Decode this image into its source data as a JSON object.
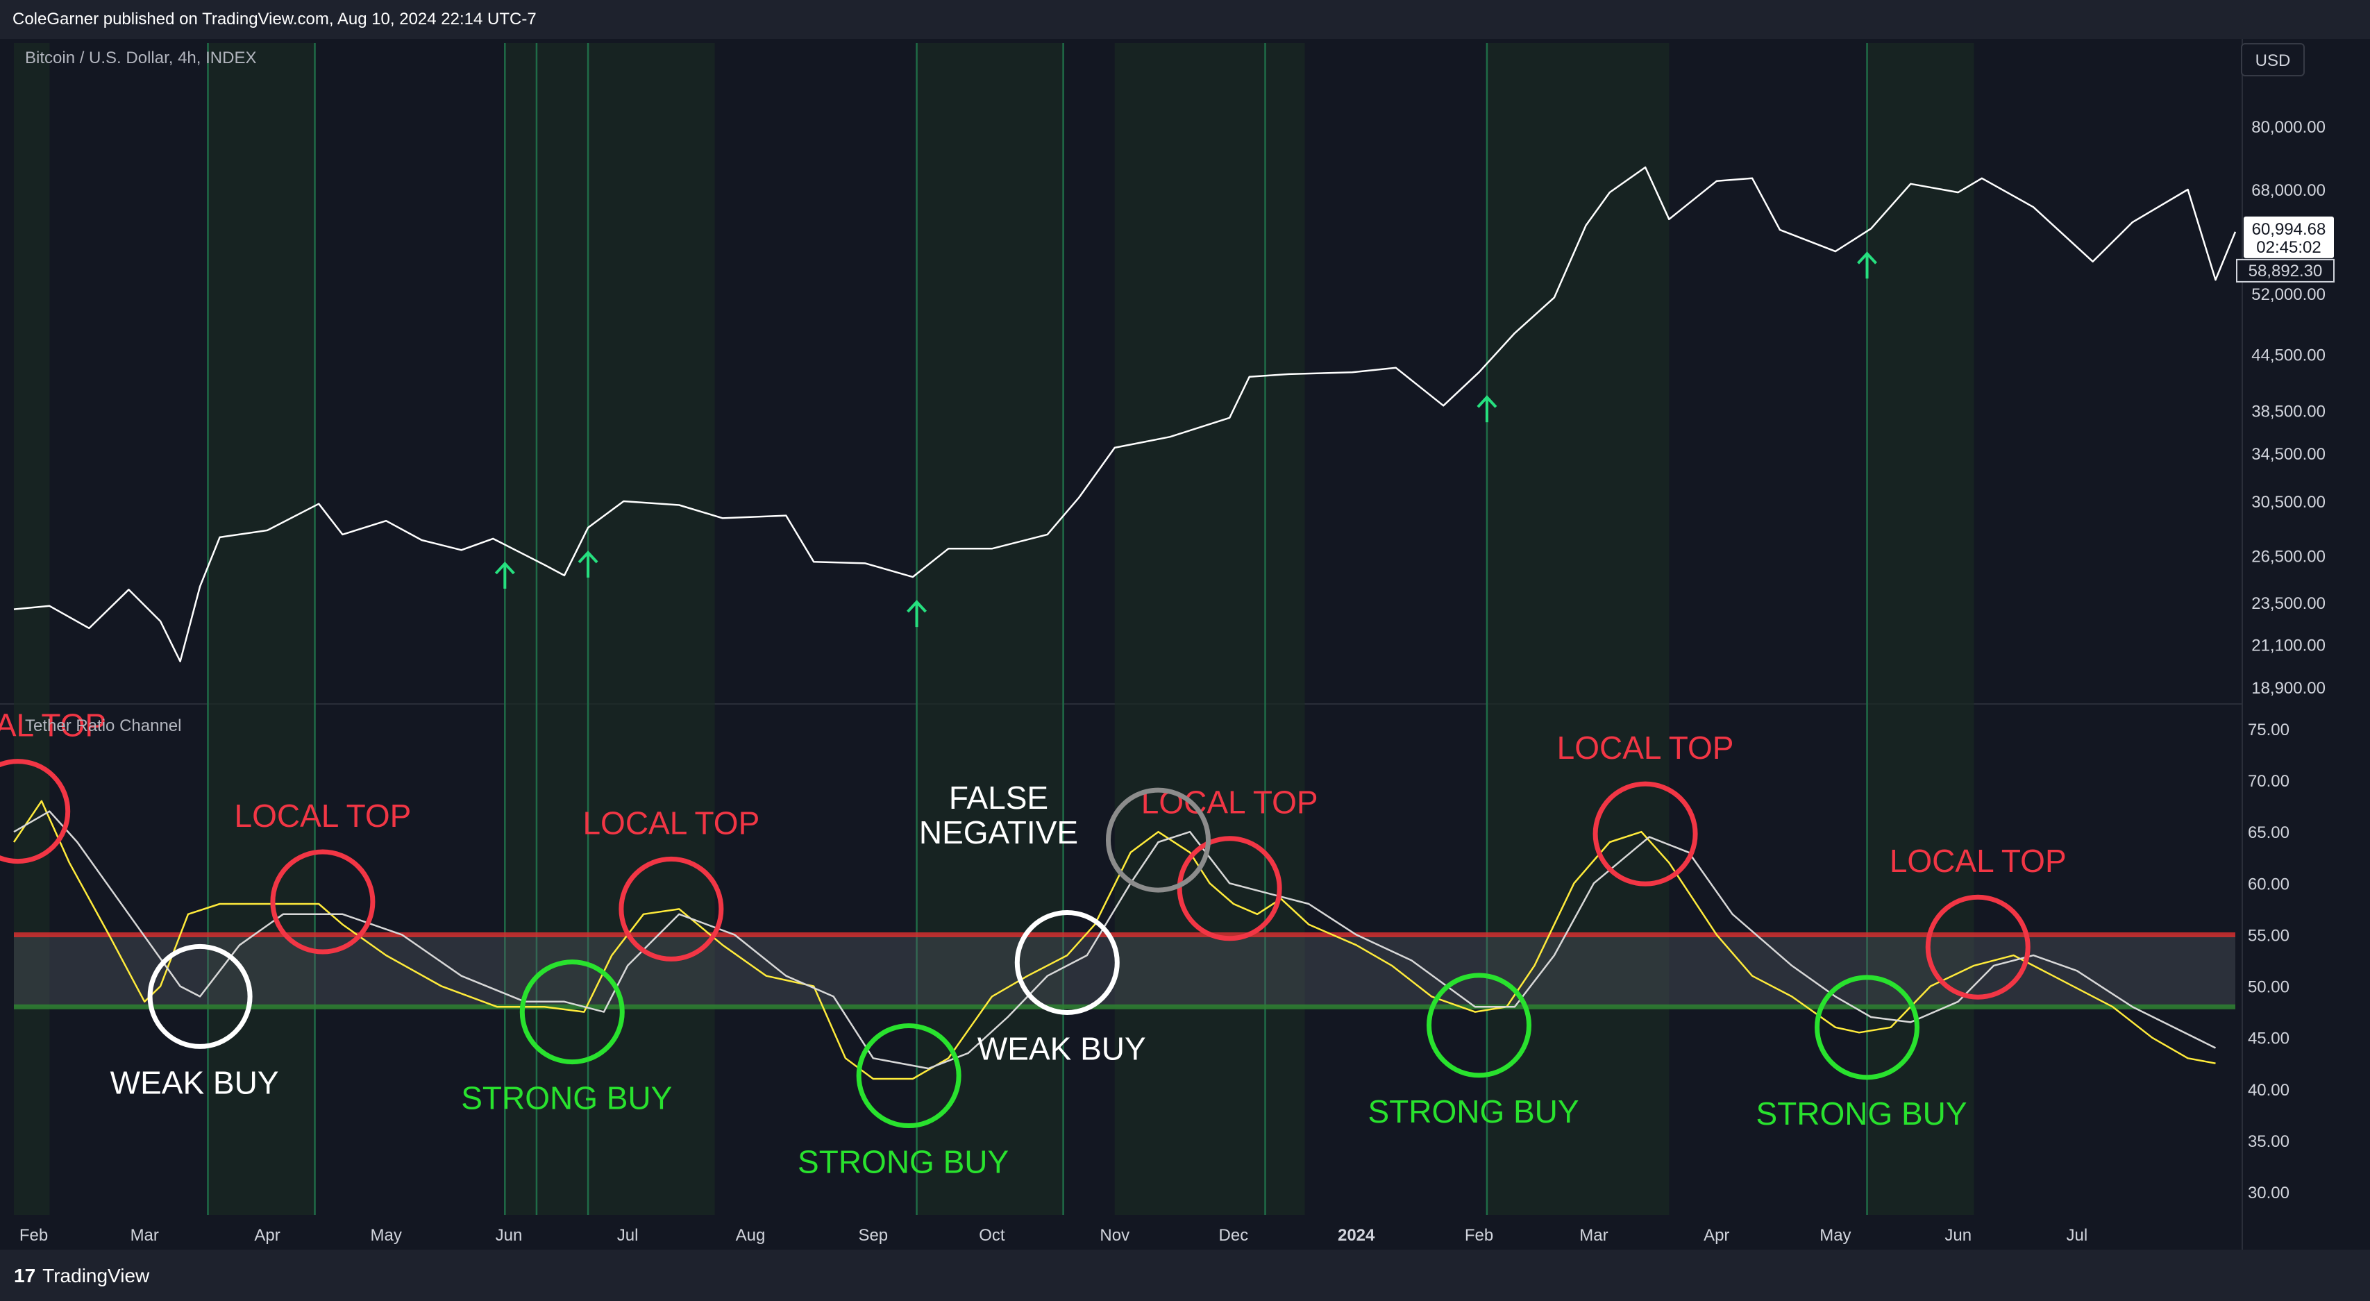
{
  "header": {
    "publisher": "ColeGarner published on TradingView.com, Aug 10, 2024 22:14 UTC-7"
  },
  "price_pane": {
    "title": "Bitcoin / U.S. Dollar, 4h, INDEX",
    "currency": "USD"
  },
  "indicator_pane": {
    "title": "Tether Ratio Channel"
  },
  "footer": {
    "brand": "TradingView",
    "logo": "17"
  },
  "price_labels": {
    "last": "60,994.68",
    "countdown": "02:45:02",
    "other": "58,892.30"
  },
  "colors": {
    "background": "#131722",
    "grid_band": "#1a2a22",
    "signal_line": "#1f6b47",
    "price": "#ffffff",
    "tether": "#ffeb3b",
    "tether_ma": "#d8d8d8",
    "upper_band": "#d32f2f",
    "lower_band": "#2e7d32",
    "red_annotation": "#f23645",
    "green_annotation": "#29e22e",
    "white_annotation": "#ffffff",
    "gray_annotation": "#8c8c8c",
    "arrow": "#26e07f"
  },
  "chart_data": [
    {
      "type": "line",
      "title": "Bitcoin / U.S. Dollar, 4h, INDEX",
      "y_scale": "log",
      "yticks": [
        18900,
        21100,
        23500,
        26500,
        30500,
        34500,
        38500,
        44500,
        52000,
        68000,
        80000
      ],
      "ytick_labels": [
        "18,900.00",
        "21,100.00",
        "23,500.00",
        "26,500.00",
        "30,500.00",
        "34,500.00",
        "38,500.00",
        "44,500.00",
        "52,000.00",
        "68,000.00",
        "80,000.00"
      ],
      "x": [
        "2023-01-27",
        "2023-02-05",
        "2023-02-15",
        "2023-02-25",
        "2023-03-05",
        "2023-03-10",
        "2023-03-15",
        "2023-03-20",
        "2023-04-01",
        "2023-04-14",
        "2023-04-20",
        "2023-05-01",
        "2023-05-10",
        "2023-05-20",
        "2023-05-28",
        "2023-06-10",
        "2023-06-15",
        "2023-06-21",
        "2023-06-30",
        "2023-07-14",
        "2023-07-25",
        "2023-08-10",
        "2023-08-17",
        "2023-08-30",
        "2023-09-11",
        "2023-09-20",
        "2023-10-01",
        "2023-10-15",
        "2023-10-23",
        "2023-11-01",
        "2023-11-15",
        "2023-11-30",
        "2023-12-05",
        "2023-12-15",
        "2023-12-31",
        "2024-01-11",
        "2024-01-23",
        "2024-02-01",
        "2024-02-10",
        "2024-02-20",
        "2024-02-28",
        "2024-03-05",
        "2024-03-14",
        "2024-03-20",
        "2024-04-01",
        "2024-04-10",
        "2024-04-17",
        "2024-05-01",
        "2024-05-10",
        "2024-05-20",
        "2024-06-01",
        "2024-06-07",
        "2024-06-20",
        "2024-07-05",
        "2024-07-15",
        "2024-07-29",
        "2024-08-05",
        "2024-08-10"
      ],
      "y": [
        23100,
        23300,
        22000,
        24300,
        22400,
        20200,
        24500,
        27800,
        28300,
        30300,
        28000,
        29000,
        27600,
        26900,
        27700,
        25900,
        25200,
        28500,
        30500,
        30200,
        29200,
        29400,
        26100,
        26000,
        25100,
        27000,
        27000,
        28000,
        30800,
        35000,
        36000,
        37800,
        42000,
        42300,
        42500,
        43000,
        39000,
        42500,
        47000,
        51500,
        62000,
        67500,
        72000,
        63000,
        69500,
        70000,
        61300,
        58000,
        61500,
        69000,
        67500,
        70000,
        65000,
        56500,
        62500,
        68000,
        53900,
        60994.68
      ]
    },
    {
      "type": "line",
      "title": "Tether Ratio Channel",
      "yticks": [
        30,
        35,
        40,
        45,
        50,
        55,
        60,
        65,
        70,
        75
      ],
      "ytick_labels": [
        "30.00",
        "35.00",
        "40.00",
        "45.00",
        "50.00",
        "55.00",
        "60.00",
        "65.00",
        "70.00",
        "75.00"
      ],
      "xtick_labels": [
        {
          "date": "2023-02-01",
          "label": "Feb"
        },
        {
          "date": "2023-03-01",
          "label": "Mar"
        },
        {
          "date": "2023-04-01",
          "label": "Apr"
        },
        {
          "date": "2023-05-01",
          "label": "May"
        },
        {
          "date": "2023-06-01",
          "label": "Jun"
        },
        {
          "date": "2023-07-01",
          "label": "Jul"
        },
        {
          "date": "2023-08-01",
          "label": "Aug"
        },
        {
          "date": "2023-09-01",
          "label": "Sep"
        },
        {
          "date": "2023-10-01",
          "label": "Oct"
        },
        {
          "date": "2023-11-01",
          "label": "Nov"
        },
        {
          "date": "2023-12-01",
          "label": "Dec"
        },
        {
          "date": "2024-01-01",
          "label": "2024"
        },
        {
          "date": "2024-02-01",
          "label": "Feb"
        },
        {
          "date": "2024-03-01",
          "label": "Mar"
        },
        {
          "date": "2024-04-01",
          "label": "Apr"
        },
        {
          "date": "2024-05-01",
          "label": "May"
        },
        {
          "date": "2024-06-01",
          "label": "Jun"
        },
        {
          "date": "2024-07-01",
          "label": "Jul"
        }
      ],
      "channel": {
        "upper": 55,
        "lower": 48
      },
      "series": [
        {
          "color": "#ffeb3b",
          "x": [
            "2023-01-27",
            "2023-02-03",
            "2023-02-10",
            "2023-02-20",
            "2023-03-01",
            "2023-03-05",
            "2023-03-12",
            "2023-03-20",
            "2023-04-01",
            "2023-04-14",
            "2023-04-20",
            "2023-05-01",
            "2023-05-15",
            "2023-05-29",
            "2023-06-10",
            "2023-06-20",
            "2023-06-27",
            "2023-07-05",
            "2023-07-14",
            "2023-07-25",
            "2023-08-05",
            "2023-08-17",
            "2023-08-25",
            "2023-09-01",
            "2023-09-11",
            "2023-09-20",
            "2023-10-01",
            "2023-10-10",
            "2023-10-20",
            "2023-10-27",
            "2023-11-05",
            "2023-11-12",
            "2023-11-20",
            "2023-11-25",
            "2023-12-01",
            "2023-12-07",
            "2023-12-13",
            "2023-12-20",
            "2024-01-01",
            "2024-01-10",
            "2024-01-20",
            "2024-01-31",
            "2024-02-08",
            "2024-02-15",
            "2024-02-25",
            "2024-03-05",
            "2024-03-13",
            "2024-03-20",
            "2024-04-01",
            "2024-04-10",
            "2024-04-20",
            "2024-05-01",
            "2024-05-07",
            "2024-05-15",
            "2024-05-25",
            "2024-06-05",
            "2024-06-15",
            "2024-06-25",
            "2024-07-10",
            "2024-07-20",
            "2024-07-29",
            "2024-08-05"
          ],
          "y": [
            64,
            68,
            62,
            55,
            48.5,
            50,
            57,
            58,
            58,
            58,
            56,
            53,
            50,
            48,
            48,
            47.5,
            53,
            57,
            57.5,
            54,
            51,
            50,
            43,
            41,
            41,
            43,
            49,
            51,
            53,
            56,
            63,
            65,
            63,
            60,
            58,
            57,
            58.5,
            56,
            54,
            52,
            49,
            47.5,
            48,
            52,
            60,
            64,
            65,
            62,
            55,
            51,
            49,
            46,
            45.5,
            46,
            50,
            52,
            53,
            51,
            48,
            45,
            43,
            42.5
          ]
        },
        {
          "color": "#d8d8d8",
          "x": [
            "2023-01-27",
            "2023-02-05",
            "2023-02-12",
            "2023-02-25",
            "2023-03-10",
            "2023-03-15",
            "2023-03-25",
            "2023-04-05",
            "2023-04-20",
            "2023-05-05",
            "2023-05-20",
            "2023-06-05",
            "2023-06-15",
            "2023-06-25",
            "2023-07-01",
            "2023-07-14",
            "2023-07-28",
            "2023-08-10",
            "2023-08-22",
            "2023-09-01",
            "2023-09-15",
            "2023-09-25",
            "2023-10-05",
            "2023-10-15",
            "2023-10-25",
            "2023-11-05",
            "2023-11-12",
            "2023-11-20",
            "2023-11-30",
            "2023-12-10",
            "2023-12-20",
            "2024-01-01",
            "2024-01-15",
            "2024-01-31",
            "2024-02-10",
            "2024-02-20",
            "2024-03-01",
            "2024-03-15",
            "2024-03-25",
            "2024-04-05",
            "2024-04-20",
            "2024-05-01",
            "2024-05-10",
            "2024-05-20",
            "2024-06-01",
            "2024-06-10",
            "2024-06-20",
            "2024-07-01",
            "2024-07-15",
            "2024-08-05"
          ],
          "y": [
            65,
            67,
            64,
            57,
            50,
            49,
            54,
            57,
            57,
            55,
            51,
            48.5,
            48.5,
            47.5,
            52,
            57,
            55,
            51,
            49,
            43,
            42,
            43.5,
            47,
            51,
            53,
            60,
            64,
            65,
            60,
            59,
            58,
            55,
            52.5,
            48,
            48,
            53,
            60,
            64.5,
            63,
            57,
            52,
            49,
            47,
            46.5,
            48.5,
            52,
            53,
            51.5,
            48,
            44
          ]
        }
      ],
      "annotations": [
        {
          "label": "LOCAL TOP",
          "kind": "local-top",
          "date": "2023-01-28",
          "value": 67
        },
        {
          "label": "LOCAL TOP",
          "kind": "local-top",
          "date": "2023-04-15",
          "value": 58.2
        },
        {
          "label": "LOCAL TOP",
          "kind": "local-top",
          "date": "2023-07-12",
          "value": 57.5
        },
        {
          "label": "LOCAL TOP",
          "kind": "local-top",
          "date": "2023-11-30",
          "value": 59.5
        },
        {
          "label": "LOCAL TOP",
          "kind": "local-top",
          "date": "2024-03-14",
          "value": 64.8
        },
        {
          "label": "LOCAL TOP",
          "kind": "local-top",
          "date": "2024-06-06",
          "value": 53.8
        },
        {
          "label": "FALSE NEGATIVE",
          "kind": "false-negative",
          "date": "2023-11-12",
          "value": 64.2
        },
        {
          "label": "WEAK BUY",
          "kind": "weak-buy",
          "date": "2023-03-15",
          "value": 49
        },
        {
          "label": "WEAK BUY",
          "kind": "weak-buy",
          "date": "2023-10-20",
          "value": 52.3
        },
        {
          "label": "STRONG BUY",
          "kind": "strong-buy",
          "date": "2023-06-17",
          "value": 47.5
        },
        {
          "label": "STRONG BUY",
          "kind": "strong-buy",
          "date": "2023-09-10",
          "value": 41.3
        },
        {
          "label": "STRONG BUY",
          "kind": "strong-buy",
          "date": "2024-02-01",
          "value": 46.2
        },
        {
          "label": "STRONG BUY",
          "kind": "strong-buy",
          "date": "2024-05-09",
          "value": 46
        }
      ],
      "signal_dates": [
        "2023-03-17",
        "2023-04-13",
        "2023-05-31",
        "2023-06-08",
        "2023-06-21",
        "2023-09-12",
        "2023-10-19",
        "2023-12-09",
        "2024-02-03",
        "2024-05-09"
      ],
      "arrow_dates": [
        "2023-05-31",
        "2023-06-21",
        "2023-09-12",
        "2024-02-03",
        "2024-05-09"
      ],
      "shaded_ranges": [
        [
          "2023-01-27",
          "2023-02-05"
        ],
        [
          "2023-03-17",
          "2023-04-13"
        ],
        [
          "2023-05-31",
          "2023-07-23"
        ],
        [
          "2023-09-12",
          "2023-10-19"
        ],
        [
          "2023-11-01",
          "2023-12-19"
        ],
        [
          "2024-02-03",
          "2024-03-20"
        ],
        [
          "2024-05-09",
          "2024-06-05"
        ]
      ]
    }
  ]
}
